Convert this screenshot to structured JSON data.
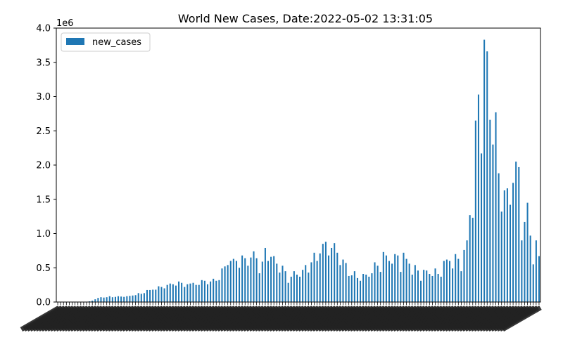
{
  "chart_data": {
    "type": "bar",
    "title": "World New Cases, Date:2022-05-02 13:31:05",
    "xlabel": "",
    "ylabel": "",
    "y_offset_label": "1e6",
    "ylim": [
      0,
      4.0
    ],
    "yticks": [
      "0.0",
      "0.5",
      "1.0",
      "1.5",
      "2.0",
      "2.5",
      "3.0",
      "3.5",
      "4.0"
    ],
    "legend_position": "top-left",
    "grid": false,
    "bar_color": "#1f77b4",
    "series": [
      {
        "name": "new_cases",
        "values_millions": [
          0.0,
          0.0,
          0.0,
          0.0,
          0.0,
          0.0,
          0.0,
          0.0,
          0.0,
          0.0,
          0.005,
          0.01,
          0.02,
          0.04,
          0.06,
          0.07,
          0.065,
          0.07,
          0.085,
          0.07,
          0.075,
          0.085,
          0.08,
          0.075,
          0.085,
          0.09,
          0.095,
          0.1,
          0.13,
          0.12,
          0.13,
          0.175,
          0.175,
          0.18,
          0.18,
          0.23,
          0.22,
          0.2,
          0.25,
          0.27,
          0.26,
          0.24,
          0.3,
          0.28,
          0.22,
          0.26,
          0.27,
          0.28,
          0.25,
          0.25,
          0.32,
          0.31,
          0.26,
          0.3,
          0.34,
          0.31,
          0.32,
          0.49,
          0.52,
          0.54,
          0.6,
          0.63,
          0.6,
          0.5,
          0.68,
          0.64,
          0.53,
          0.65,
          0.74,
          0.64,
          0.42,
          0.59,
          0.79,
          0.6,
          0.66,
          0.67,
          0.56,
          0.43,
          0.53,
          0.45,
          0.28,
          0.37,
          0.45,
          0.4,
          0.37,
          0.47,
          0.54,
          0.43,
          0.58,
          0.72,
          0.6,
          0.71,
          0.85,
          0.88,
          0.68,
          0.79,
          0.86,
          0.72,
          0.54,
          0.62,
          0.57,
          0.38,
          0.39,
          0.45,
          0.35,
          0.31,
          0.41,
          0.4,
          0.37,
          0.42,
          0.58,
          0.53,
          0.44,
          0.73,
          0.68,
          0.6,
          0.56,
          0.7,
          0.68,
          0.44,
          0.72,
          0.63,
          0.56,
          0.4,
          0.54,
          0.46,
          0.31,
          0.47,
          0.46,
          0.41,
          0.38,
          0.49,
          0.41,
          0.37,
          0.6,
          0.62,
          0.6,
          0.49,
          0.7,
          0.63,
          0.45,
          0.76,
          0.9,
          1.27,
          1.23,
          2.65,
          3.03,
          2.17,
          3.83,
          3.66,
          2.66,
          2.3,
          2.77,
          1.88,
          1.32,
          1.63,
          1.66,
          1.42,
          1.74,
          2.05,
          1.97,
          0.9,
          1.17,
          1.45,
          0.97,
          0.55,
          0.9,
          0.67
        ]
      }
    ],
    "note_x_tick_labels": "x tick labels are illegible dense overlapping date strings"
  }
}
